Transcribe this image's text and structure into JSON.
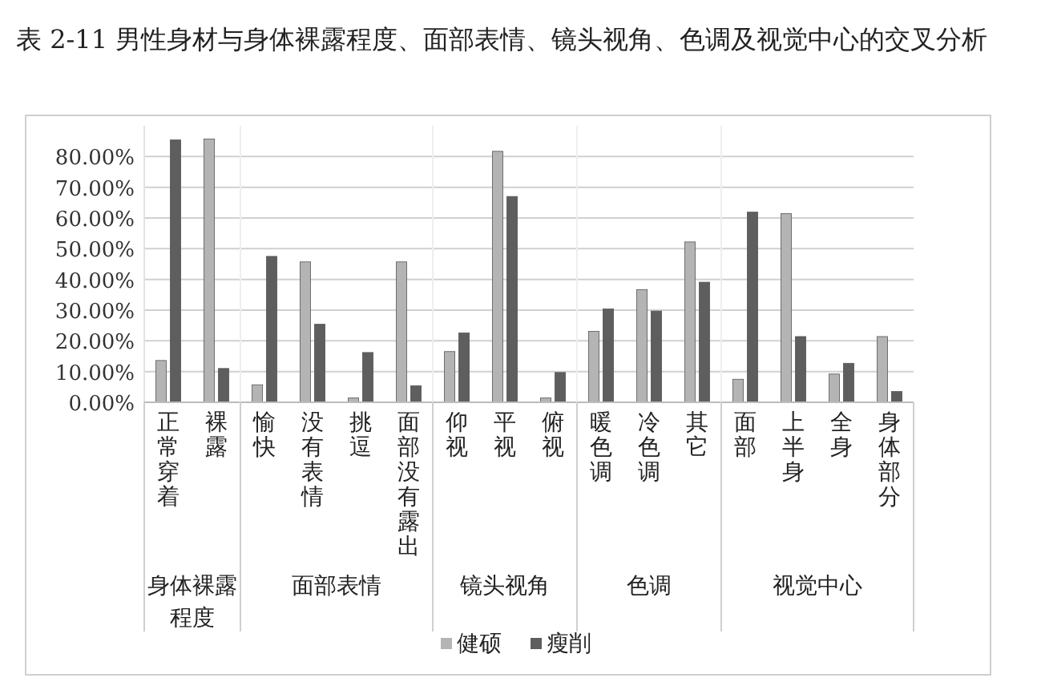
{
  "chart_data": [
    {
      "type": "bar",
      "title": "表 2-11 男性身材与身体裸露程度、面部表情、镜头视角、色调及视觉中心的交叉分析",
      "xlabel": "身体裸露程度",
      "categories": [
        "正常穿着",
        "裸露"
      ],
      "series": [
        {
          "color": "#b4b4b4",
          "values": [
            13.6,
            85.7
          ]
        },
        {
          "color": "#5e5e5e",
          "values": [
            85.4,
            11.0
          ]
        }
      ],
      "ylim": [
        0,
        90
      ],
      "yticks": [
        {
          "value": 0,
          "label": "0.00%"
        },
        {
          "value": 10,
          "label": "10.00%"
        },
        {
          "value": 20,
          "label": "20.00%"
        },
        {
          "value": 30,
          "label": "30.00%"
        },
        {
          "value": 40,
          "label": "40.00%"
        },
        {
          "value": 50,
          "label": "50.00%"
        },
        {
          "value": 60,
          "label": "60.00%"
        },
        {
          "value": 70,
          "label": "70.00%"
        },
        {
          "value": 80,
          "label": "80.00%"
        }
      ],
      "grid": "y"
    },
    {
      "type": "bar",
      "xlabel": "面部表情",
      "categories": [
        "愉快",
        "没有表情",
        "挑逗",
        "面部没有露出"
      ],
      "series": [
        {
          "color": "#b4b4b4",
          "values": [
            5.7,
            45.7,
            1.4,
            45.7
          ]
        },
        {
          "color": "#5e5e5e",
          "values": [
            47.5,
            25.4,
            16.2,
            5.4
          ]
        }
      ],
      "ylim": [
        0,
        90
      ],
      "yticks": [
        0,
        10,
        20,
        30,
        40,
        50,
        60,
        70,
        80
      ],
      "grid": "y",
      "tick_labels": "x"
    },
    {
      "type": "bar",
      "xlabel": "镜头视角",
      "categories": [
        "仰视",
        "平视",
        "俯视"
      ],
      "series": [
        {
          "name": "健硕",
          "color": "#b4b4b4",
          "values": [
            16.5,
            81.7,
            1.4
          ]
        },
        {
          "name": "瘦削",
          "color": "#5e5e5e",
          "values": [
            22.6,
            67.0,
            9.7
          ]
        }
      ],
      "ylim": [
        0,
        90
      ],
      "yticks": [
        0,
        10,
        20,
        30,
        40,
        50,
        60,
        70,
        80
      ],
      "grid": "y",
      "tick_labels": "x",
      "legend": "bottom"
    },
    {
      "type": "bar",
      "xlabel": "色调",
      "categories": [
        "暖色调",
        "冷色调",
        "其它"
      ],
      "series": [
        {
          "color": "#b4b4b4",
          "values": [
            23.1,
            36.7,
            52.2
          ]
        },
        {
          "color": "#5e5e5e",
          "values": [
            30.4,
            29.7,
            39.1
          ]
        }
      ],
      "ylim": [
        0,
        90
      ],
      "yticks": [
        0,
        10,
        20,
        30,
        40,
        50,
        60,
        70,
        80
      ],
      "grid": "y",
      "tick_labels": "x"
    },
    {
      "type": "bar",
      "xlabel": "视觉中心",
      "categories": [
        "面部",
        "上半身",
        "全身",
        "身体部分"
      ],
      "series": [
        {
          "color": "#b4b4b4",
          "values": [
            7.5,
            61.4,
            9.2,
            21.4
          ]
        },
        {
          "color": "#5e5e5e",
          "values": [
            61.9,
            21.4,
            12.7,
            3.5
          ]
        }
      ],
      "ylim": [
        0,
        90
      ],
      "yticks": [
        0,
        10,
        20,
        30,
        40,
        50,
        60,
        70,
        80
      ],
      "grid": "y",
      "tick_labels": "x"
    }
  ]
}
